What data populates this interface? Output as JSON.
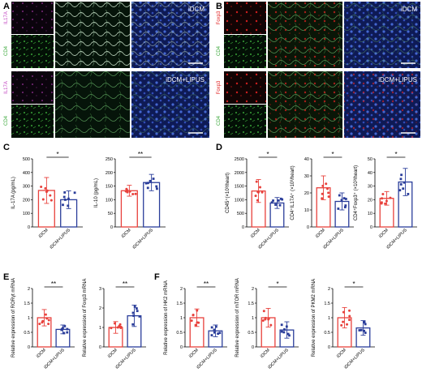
{
  "figure": {
    "panels": {
      "A": "A",
      "B": "B",
      "C": "C",
      "D": "D",
      "E": "E",
      "F": "F"
    },
    "microscopy": {
      "A": {
        "top_group_label": "iDCM",
        "bottom_group_label": "iDCM+LIPUS",
        "stain_top": "IL17A",
        "stain_bottom": "CD4",
        "stain_color": "#c040c0"
      },
      "B": {
        "top_group_label": "iDCM",
        "bottom_group_label": "iDCM+LIPUS",
        "stain_top": "Foxp3",
        "stain_bottom": "CD4",
        "stain_color": "#e02020"
      }
    }
  },
  "colors": {
    "idcm": "#e8413c",
    "lipus": "#2a3d9a",
    "merge_bg": "#1b2a6e",
    "green": "#3aa83a"
  },
  "chart_data": [
    {
      "id": "C1",
      "type": "bar",
      "panel": "C",
      "ylabel": "IL-17A (pg/mL)",
      "ylim": [
        0,
        500
      ],
      "yticks": [
        0,
        100,
        200,
        300,
        400,
        500
      ],
      "categories": [
        "iDCM",
        "iDCM+LIPUS"
      ],
      "values": [
        268,
        200
      ],
      "errors": [
        95,
        65
      ],
      "significance": "*"
    },
    {
      "id": "C2",
      "type": "bar",
      "panel": "C",
      "ylabel": "IL-10 (pg/mL)",
      "ylim": [
        0,
        250
      ],
      "yticks": [
        0,
        50,
        100,
        150,
        200,
        250
      ],
      "categories": [
        "iDCM",
        "iDCM+LIPUS"
      ],
      "values": [
        133,
        163
      ],
      "errors": [
        20,
        30
      ],
      "significance": "**"
    },
    {
      "id": "D1",
      "type": "bar",
      "panel": "D",
      "ylabel": "CD45⁺(×10³/heart)",
      "ylim": [
        0,
        2500
      ],
      "yticks": [
        0,
        500,
        1000,
        1500,
        2000,
        2500
      ],
      "categories": [
        "iDCM",
        "iDCM+LIPUS"
      ],
      "values": [
        1320,
        880
      ],
      "errors": [
        420,
        200
      ],
      "significance": "*"
    },
    {
      "id": "D2",
      "type": "bar",
      "panel": "D",
      "ylabel": "CD4⁺IL17A⁺ (×10³/heart)",
      "ylim": [
        0,
        40
      ],
      "yticks": [
        0,
        10,
        20,
        30,
        40
      ],
      "categories": [
        "iDCM",
        "iDCM+LIPUS"
      ],
      "values": [
        23,
        15
      ],
      "errors": [
        7,
        5
      ],
      "significance": "*"
    },
    {
      "id": "D3",
      "type": "bar",
      "panel": "D",
      "ylabel": "CD4⁺Foxp3⁺ (×10³/heart)",
      "ylim": [
        0,
        50
      ],
      "yticks": [
        0,
        10,
        20,
        30,
        40,
        50
      ],
      "categories": [
        "iDCM",
        "iDCM+LIPUS"
      ],
      "values": [
        21,
        33
      ],
      "errors": [
        5,
        10
      ],
      "significance": "*"
    },
    {
      "id": "E1",
      "type": "bar",
      "panel": "E",
      "ylabel": "Relative expression of RORγt mRNA",
      "ylim": [
        0,
        2.0
      ],
      "yticks": [
        0.0,
        0.5,
        1.0,
        1.5,
        2.0
      ],
      "categories": [
        "iDCM",
        "iDCM+LIPUS"
      ],
      "values": [
        1.0,
        0.6
      ],
      "errors": [
        0.28,
        0.15
      ],
      "significance": "**"
    },
    {
      "id": "E2",
      "type": "bar",
      "panel": "E",
      "ylabel": "Relative expression of Foxp3 mRNA",
      "ylim": [
        0,
        3
      ],
      "yticks": [
        0,
        1,
        2,
        3
      ],
      "categories": [
        "iDCM",
        "iDCM+LIPUS"
      ],
      "values": [
        1.0,
        1.6
      ],
      "errors": [
        0.3,
        0.55
      ],
      "significance": "**"
    },
    {
      "id": "F1",
      "type": "bar",
      "panel": "F",
      "ylabel": "Relative expression of HK2 mRNA",
      "ylim": [
        0,
        2.0
      ],
      "yticks": [
        0.0,
        0.5,
        1.0,
        1.5,
        2.0
      ],
      "categories": [
        "iDCM",
        "iDCM+LIPUS"
      ],
      "values": [
        1.0,
        0.55
      ],
      "errors": [
        0.3,
        0.2
      ],
      "significance": "**"
    },
    {
      "id": "F2",
      "type": "bar",
      "panel": "F",
      "ylabel": "Relative expression of mTOR mRNA",
      "ylim": [
        0,
        2.0
      ],
      "yticks": [
        0.0,
        0.5,
        1.0,
        1.5,
        2.0
      ],
      "categories": [
        "iDCM",
        "iDCM+LIPUS"
      ],
      "values": [
        1.0,
        0.58
      ],
      "errors": [
        0.32,
        0.28
      ],
      "significance": "*"
    },
    {
      "id": "F3",
      "type": "bar",
      "panel": "F",
      "ylabel": "Relative expression of PKM2 mRNA",
      "ylim": [
        0,
        2.0
      ],
      "yticks": [
        0.0,
        0.5,
        1.0,
        1.5,
        2.0
      ],
      "categories": [
        "iDCM",
        "iDCM+LIPUS"
      ],
      "values": [
        1.0,
        0.65
      ],
      "errors": [
        0.35,
        0.25
      ],
      "significance": "*"
    }
  ]
}
